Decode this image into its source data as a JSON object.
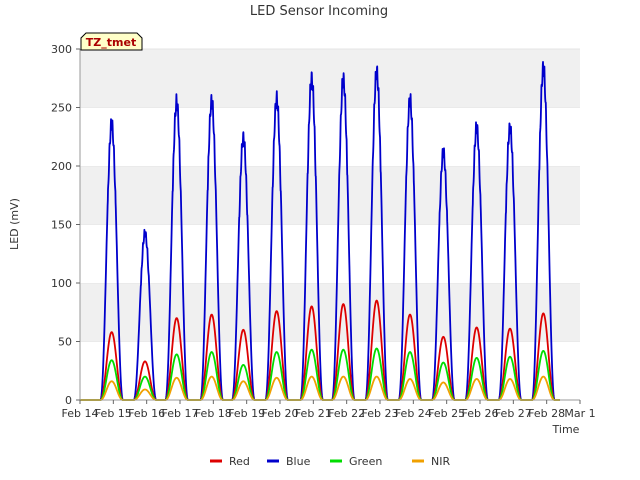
{
  "chart_data": {
    "type": "line",
    "title": "LED Sensor Incoming",
    "xlabel": "Time",
    "ylabel": "LED (mV)",
    "ylim": [
      0,
      300
    ],
    "yticks": [
      0,
      50,
      100,
      150,
      200,
      250,
      300
    ],
    "xlim": [
      0,
      15
    ],
    "xticks": [
      {
        "x": 0,
        "label": "Feb 14"
      },
      {
        "x": 1,
        "label": "Feb 15"
      },
      {
        "x": 2,
        "label": "Feb 16"
      },
      {
        "x": 3,
        "label": "Feb 17"
      },
      {
        "x": 4,
        "label": "Feb 18"
      },
      {
        "x": 5,
        "label": "Feb 19"
      },
      {
        "x": 6,
        "label": "Feb 20"
      },
      {
        "x": 7,
        "label": "Feb 21"
      },
      {
        "x": 8,
        "label": "Feb 22"
      },
      {
        "x": 9,
        "label": "Feb 23"
      },
      {
        "x": 10,
        "label": "Feb 24"
      },
      {
        "x": 11,
        "label": "Feb 25"
      },
      {
        "x": 12,
        "label": "Feb 26"
      },
      {
        "x": 13,
        "label": "Feb 27"
      },
      {
        "x": 14,
        "label": "Feb 28"
      },
      {
        "x": 15,
        "label": "Mar 1"
      }
    ],
    "grid": "horizontal bands",
    "annotation": "TZ_tmet",
    "day_centers": [
      0.95,
      1.95,
      2.9,
      3.95,
      4.9,
      5.9,
      6.95,
      7.9,
      8.9,
      9.9,
      10.9,
      11.9,
      12.9,
      13.9
    ],
    "series": [
      {
        "name": "Red",
        "color": "#dd0000",
        "daily_peaks": [
          58,
          33,
          70,
          73,
          60,
          76,
          80,
          82,
          85,
          73,
          54,
          62,
          61,
          74
        ]
      },
      {
        "name": "Blue",
        "color": "#0000cc",
        "daily_peaks": [
          243,
          147,
          262,
          263,
          231,
          265,
          283,
          282,
          289,
          264,
          218,
          240,
          240,
          292
        ]
      },
      {
        "name": "Green",
        "color": "#00dd00",
        "daily_peaks": [
          34,
          20,
          39,
          41,
          30,
          41,
          43,
          43,
          44,
          41,
          32,
          36,
          37,
          42
        ]
      },
      {
        "name": "NIR",
        "color": "#f0a000",
        "daily_peaks": [
          16,
          9,
          19,
          20,
          16,
          19,
          20,
          20,
          20,
          18,
          15,
          18,
          18,
          20
        ]
      }
    ],
    "legend": "bottom"
  }
}
